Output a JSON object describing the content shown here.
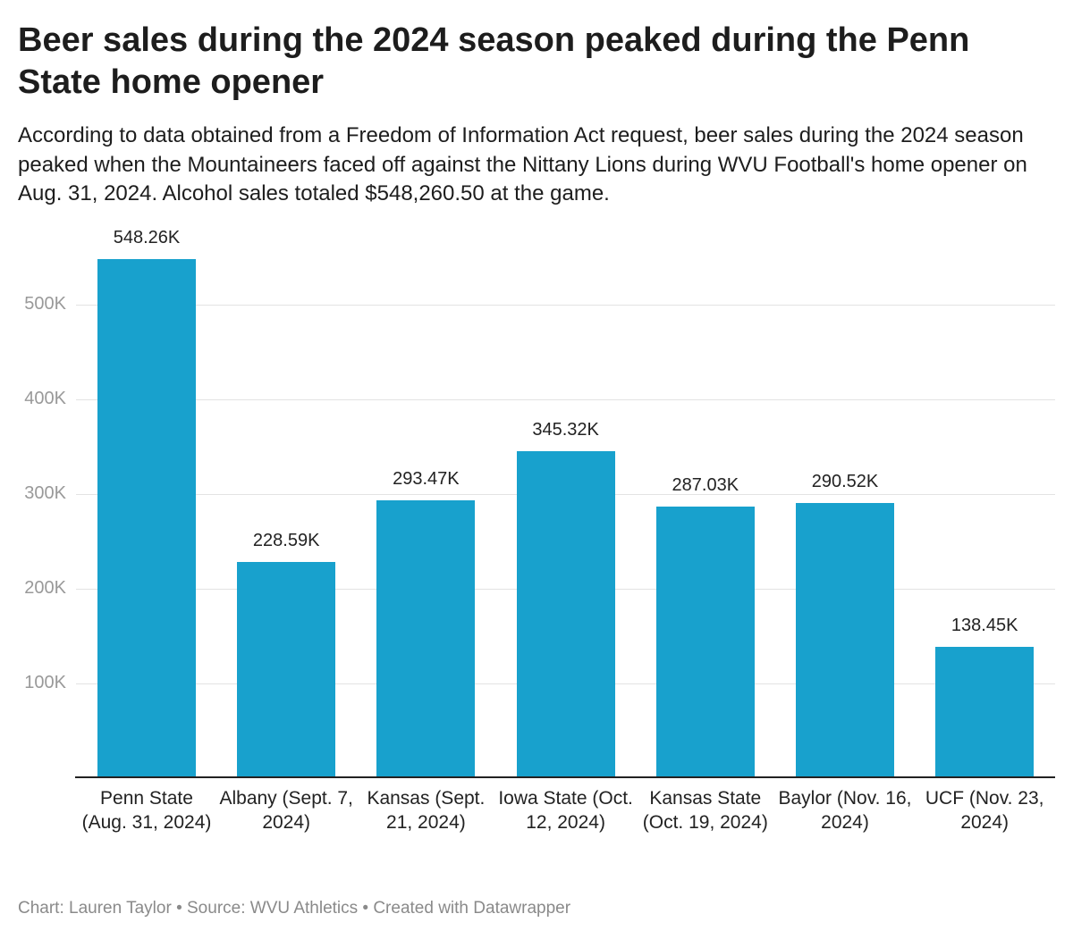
{
  "chart_data": {
    "type": "bar",
    "title": "Beer sales during the 2024 season peaked during the Penn State home opener",
    "subtitle": "According to data obtained from a Freedom of Information Act request, beer sales during the 2024 season peaked when the Mountaineers faced off against the Nittany Lions during WVU Football's home opener on Aug. 31, 2024. Alcohol sales totaled $548,260.50 at the game.",
    "categories": [
      "Penn State (Aug. 31, 2024)",
      "Albany (Sept. 7, 2024)",
      "Kansas (Sept. 21, 2024)",
      "Iowa State (Oct. 12, 2024)",
      "Kansas State (Oct. 19, 2024)",
      "Baylor (Nov. 16, 2024)",
      "UCF (Nov. 23, 2024)"
    ],
    "values": [
      548260.5,
      228590,
      293470,
      345320,
      287030,
      290520,
      138450
    ],
    "value_labels": [
      "548.26K",
      "228.59K",
      "293.47K",
      "345.32K",
      "287.03K",
      "290.52K",
      "138.45K"
    ],
    "yticks": [
      100000,
      200000,
      300000,
      400000,
      500000
    ],
    "ytick_labels": [
      "100K",
      "200K",
      "300K",
      "400K",
      "500K"
    ],
    "ylim": [
      0,
      548260.5
    ],
    "grid": true,
    "bar_color": "#18a1cd",
    "xlabel": "",
    "ylabel": ""
  },
  "footer": "Chart: Lauren Taylor • Source: WVU Athletics • Created with Datawrapper"
}
